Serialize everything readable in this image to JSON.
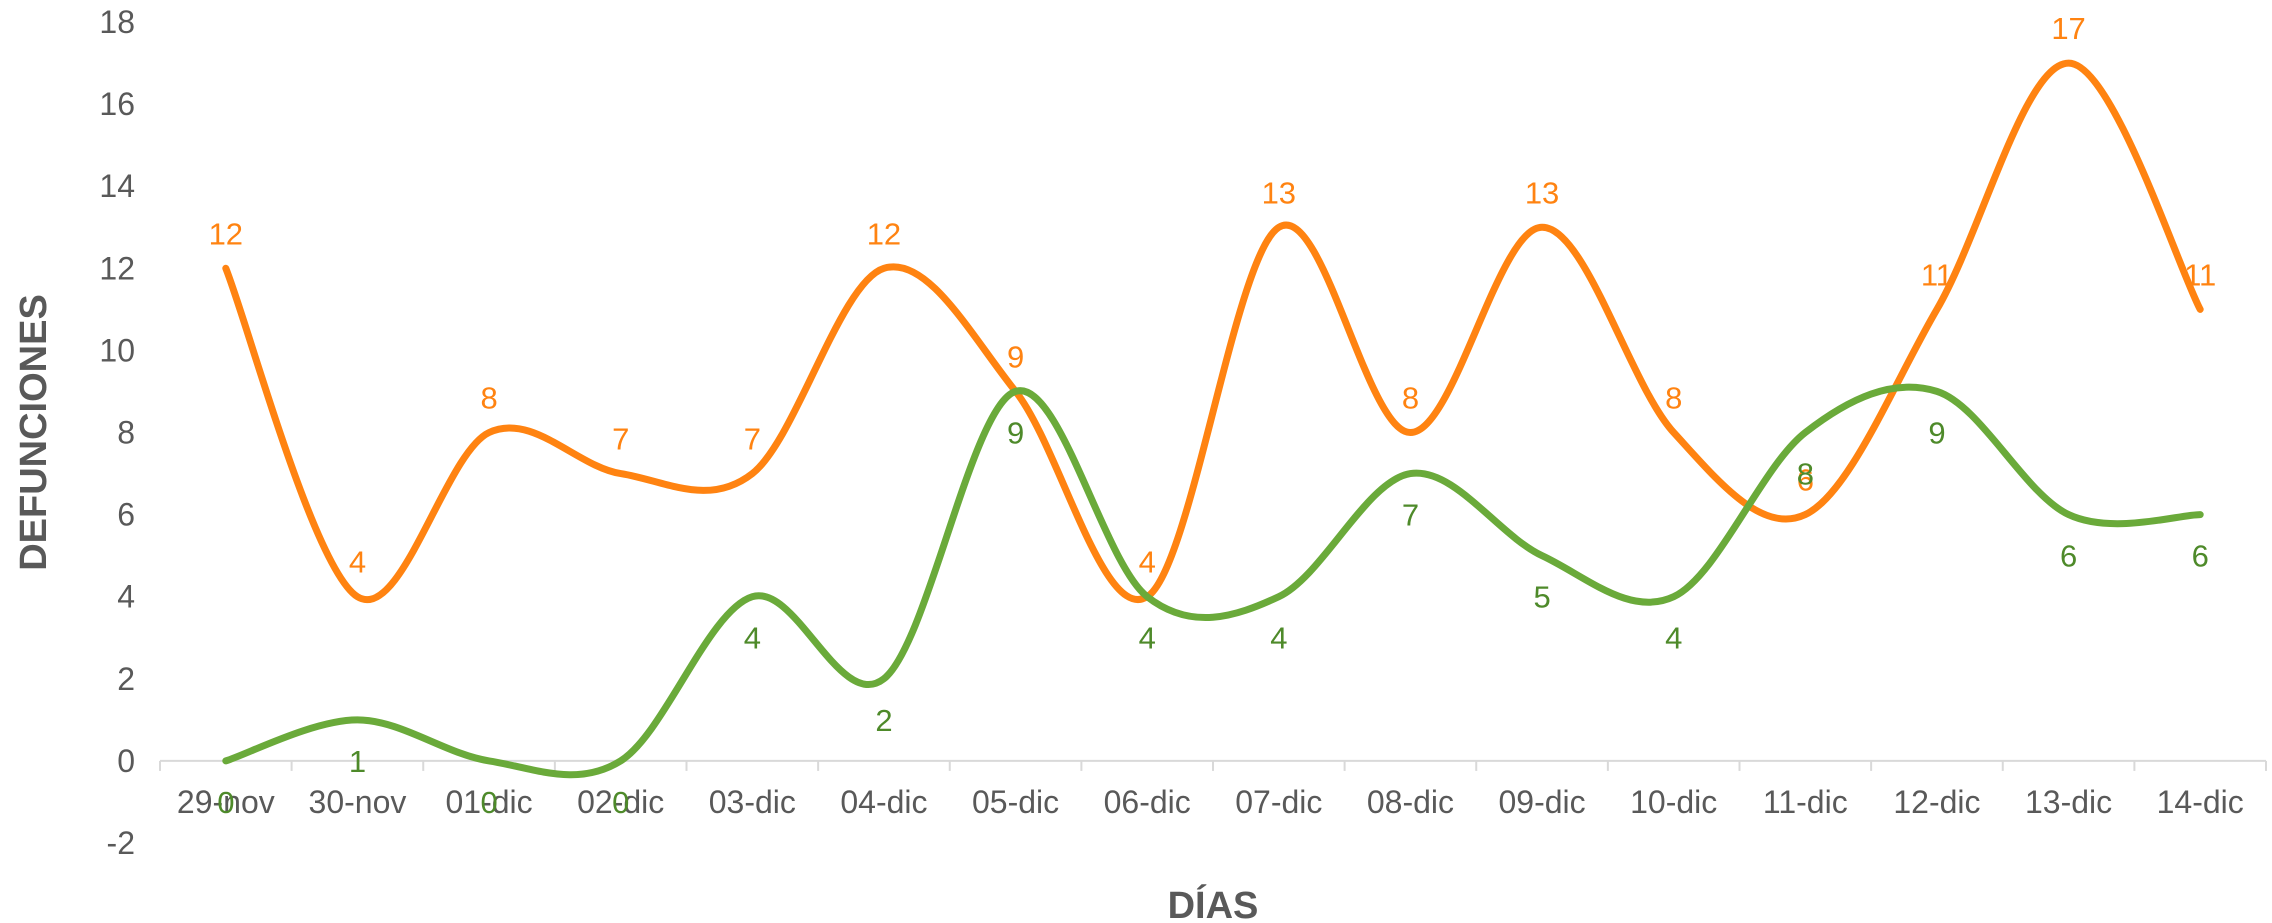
{
  "chart_data": {
    "type": "line",
    "smooth": true,
    "title": "",
    "xlabel": "DÍAS",
    "ylabel": "DEFUNCIONES",
    "ylim": [
      -2,
      18
    ],
    "ytick_step": 2,
    "yticks": [
      "-2",
      "0",
      "2",
      "4",
      "6",
      "8",
      "10",
      "12",
      "14",
      "16",
      "18"
    ],
    "grid": false,
    "legend": "none",
    "categories": [
      "29-nov",
      "30-nov",
      "01-dic",
      "02-dic",
      "03-dic",
      "04-dic",
      "05-dic",
      "06-dic",
      "07-dic",
      "08-dic",
      "09-dic",
      "10-dic",
      "11-dic",
      "12-dic",
      "13-dic",
      "14-dic"
    ],
    "series": [
      {
        "color": "#FF8311",
        "label_color": "#FF8311",
        "values": [
          12,
          4,
          8,
          7,
          7,
          12,
          9,
          4,
          13,
          8,
          13,
          8,
          6,
          11,
          17,
          11
        ],
        "label_position": "above"
      },
      {
        "color": "#6AAA3A",
        "label_color": "#4E8A2A",
        "values": [
          0,
          1,
          0,
          0,
          4,
          2,
          9,
          4,
          4,
          7,
          5,
          4,
          8,
          9,
          6,
          6
        ],
        "label_position": "below"
      }
    ]
  }
}
